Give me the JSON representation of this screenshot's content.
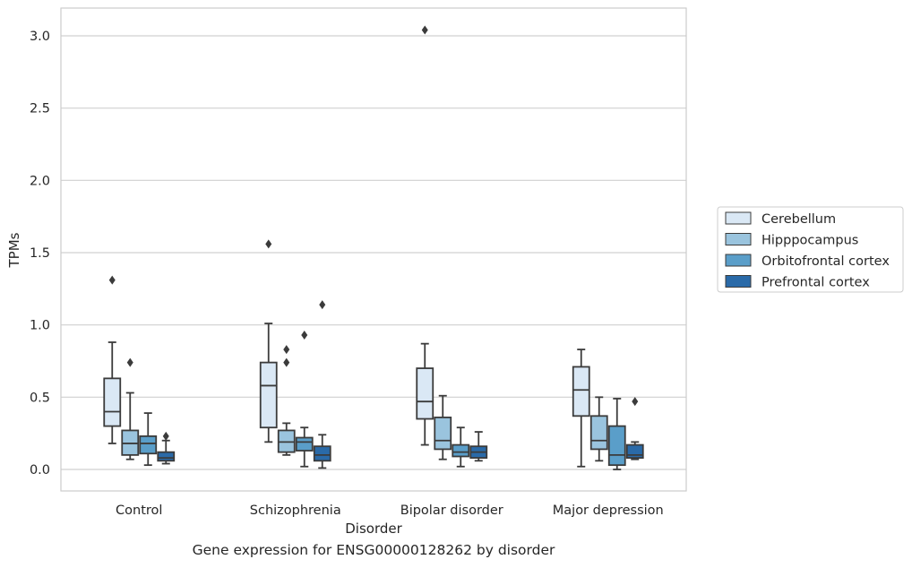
{
  "caption": "Gene expression for ENSG00000128262 by disorder",
  "chart_data": {
    "type": "box",
    "xlabel": "Disorder",
    "ylabel": "TPMs",
    "ylim": [
      -0.15,
      3.2
    ],
    "yticks": [
      0.0,
      0.5,
      1.0,
      1.5,
      2.0,
      2.5,
      3.0
    ],
    "ytick_labels": [
      "0.0",
      "0.5",
      "1.0",
      "1.5",
      "2.0",
      "2.5",
      "3.0"
    ],
    "grid": "horizontal",
    "legend_position": "right",
    "categories": [
      "Control",
      "Schizophrenia",
      "Bipolar disorder",
      "Major depression"
    ],
    "series": [
      {
        "name": "Cerebellum",
        "color": "#dae8f5",
        "boxes": [
          {
            "min": 0.18,
            "q1": 0.3,
            "median": 0.4,
            "q3": 0.63,
            "max": 0.88,
            "outliers": [
              1.31
            ]
          },
          {
            "min": 0.19,
            "q1": 0.29,
            "median": 0.58,
            "q3": 0.74,
            "max": 1.01,
            "outliers": [
              1.56
            ]
          },
          {
            "min": 0.17,
            "q1": 0.35,
            "median": 0.47,
            "q3": 0.7,
            "max": 0.87,
            "outliers": [
              3.04
            ]
          },
          {
            "min": 0.02,
            "q1": 0.37,
            "median": 0.55,
            "q3": 0.71,
            "max": 0.83,
            "outliers": []
          }
        ]
      },
      {
        "name": "Hipppocampus",
        "color": "#9ac4de",
        "boxes": [
          {
            "min": 0.07,
            "q1": 0.1,
            "median": 0.18,
            "q3": 0.27,
            "max": 0.53,
            "outliers": [
              0.74
            ]
          },
          {
            "min": 0.1,
            "q1": 0.12,
            "median": 0.19,
            "q3": 0.27,
            "max": 0.32,
            "outliers": [
              0.74,
              0.83
            ]
          },
          {
            "min": 0.07,
            "q1": 0.14,
            "median": 0.2,
            "q3": 0.36,
            "max": 0.51,
            "outliers": []
          },
          {
            "min": 0.06,
            "q1": 0.14,
            "median": 0.2,
            "q3": 0.37,
            "max": 0.5,
            "outliers": []
          }
        ]
      },
      {
        "name": "Orbitofrontal cortex",
        "color": "#5a9ec9",
        "boxes": [
          {
            "min": 0.03,
            "q1": 0.11,
            "median": 0.18,
            "q3": 0.23,
            "max": 0.39,
            "outliers": []
          },
          {
            "min": 0.02,
            "q1": 0.13,
            "median": 0.19,
            "q3": 0.22,
            "max": 0.29,
            "outliers": [
              0.93
            ]
          },
          {
            "min": 0.02,
            "q1": 0.09,
            "median": 0.12,
            "q3": 0.17,
            "max": 0.29,
            "outliers": []
          },
          {
            "min": 0.0,
            "q1": 0.03,
            "median": 0.1,
            "q3": 0.3,
            "max": 0.49,
            "outliers": []
          }
        ]
      },
      {
        "name": "Prefrontal cortex",
        "color": "#2a6aa8",
        "boxes": [
          {
            "min": 0.04,
            "q1": 0.06,
            "median": 0.08,
            "q3": 0.12,
            "max": 0.2,
            "outliers": [
              0.23
            ]
          },
          {
            "min": 0.01,
            "q1": 0.06,
            "median": 0.1,
            "q3": 0.16,
            "max": 0.24,
            "outliers": [
              1.14
            ]
          },
          {
            "min": 0.06,
            "q1": 0.08,
            "median": 0.12,
            "q3": 0.16,
            "max": 0.26,
            "outliers": []
          },
          {
            "min": 0.07,
            "q1": 0.08,
            "median": 0.1,
            "q3": 0.17,
            "max": 0.19,
            "outliers": [
              0.47
            ]
          }
        ]
      }
    ]
  }
}
